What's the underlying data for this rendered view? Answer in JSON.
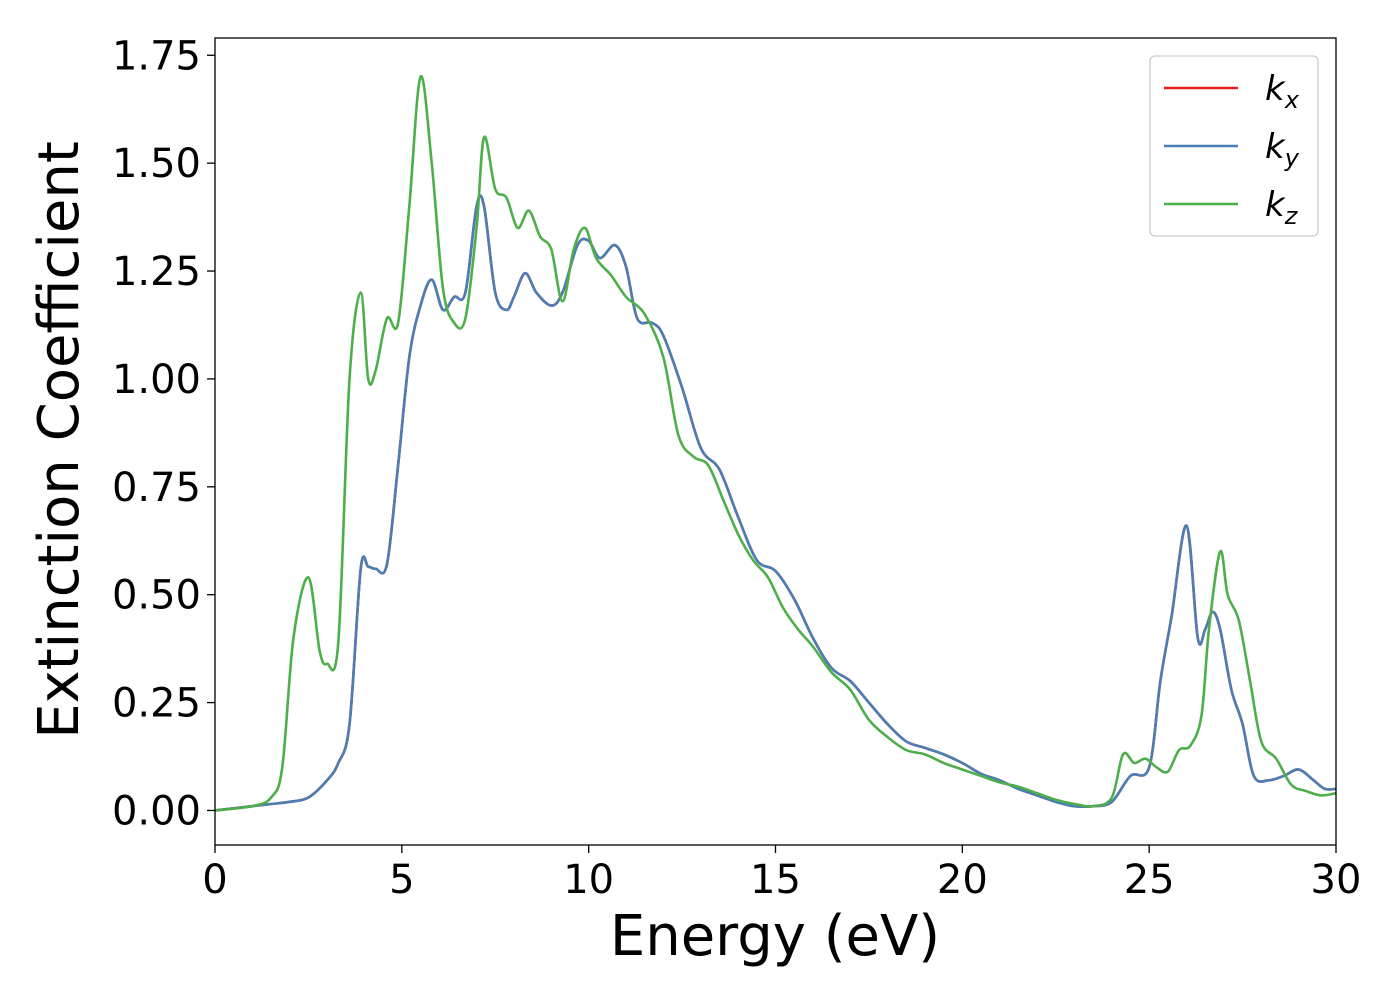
{
  "chart_data": {
    "type": "line",
    "title": "",
    "xlabel": "Energy (eV)",
    "ylabel": "Extinction Coefficient",
    "xlim": [
      0,
      30
    ],
    "ylim": [
      -0.08,
      1.79
    ],
    "xticks": [
      0,
      5,
      10,
      15,
      20,
      25,
      30
    ],
    "xtick_labels": [
      "0",
      "5",
      "10",
      "15",
      "20",
      "25",
      "30"
    ],
    "yticks": [
      0,
      0.25,
      0.5,
      0.75,
      1.0,
      1.25,
      1.5,
      1.75
    ],
    "ytick_labels": [
      "0.00",
      "0.25",
      "0.50",
      "0.75",
      "1.00",
      "1.25",
      "1.50",
      "1.75"
    ],
    "grid": false,
    "legend_position": "top-right",
    "series": [
      {
        "name": "x",
        "color": "#e41a1c",
        "x": [
          0,
          1,
          1.5,
          2,
          2.5,
          3,
          3.3,
          3.6,
          3.9,
          4.1,
          4.3,
          4.6,
          4.9,
          5.2,
          5.5,
          5.8,
          6.1,
          6.4,
          6.7,
          7,
          7.2,
          7.5,
          7.8,
          8.0,
          8.3,
          8.6,
          9,
          9.3,
          9.7,
          10.0,
          10.3,
          10.7,
          11.0,
          11.3,
          11.7,
          12.0,
          12.5,
          13.0,
          13.5,
          14.0,
          14.5,
          15.0,
          15.5,
          16.0,
          16.5,
          17.0,
          17.5,
          18.0,
          18.5,
          19.0,
          19.5,
          20.0,
          20.5,
          21.0,
          21.5,
          22.0,
          22.5,
          23.0,
          23.5,
          24.0,
          24.5,
          25.0,
          25.3,
          25.6,
          26.0,
          26.3,
          26.5,
          26.7,
          26.9,
          27.2,
          27.5,
          27.8,
          28.2,
          28.6,
          29.0,
          29.4,
          29.7,
          30
        ],
        "y": [
          0.0,
          0.01,
          0.015,
          0.02,
          0.03,
          0.07,
          0.11,
          0.2,
          0.56,
          0.565,
          0.56,
          0.57,
          0.8,
          1.05,
          1.17,
          1.23,
          1.16,
          1.19,
          1.2,
          1.4,
          1.4,
          1.2,
          1.16,
          1.19,
          1.245,
          1.2,
          1.17,
          1.2,
          1.31,
          1.32,
          1.28,
          1.31,
          1.26,
          1.14,
          1.13,
          1.1,
          0.98,
          0.84,
          0.79,
          0.68,
          0.58,
          0.555,
          0.49,
          0.4,
          0.33,
          0.3,
          0.25,
          0.2,
          0.16,
          0.145,
          0.13,
          0.11,
          0.085,
          0.07,
          0.05,
          0.035,
          0.02,
          0.01,
          0.01,
          0.02,
          0.08,
          0.1,
          0.3,
          0.45,
          0.66,
          0.4,
          0.42,
          0.46,
          0.42,
          0.28,
          0.2,
          0.08,
          0.07,
          0.08,
          0.095,
          0.07,
          0.05,
          0.05
        ]
      },
      {
        "name": "y",
        "color": "#4a7fb5",
        "x": [
          0,
          1,
          1.5,
          2,
          2.5,
          3,
          3.3,
          3.6,
          3.9,
          4.1,
          4.3,
          4.6,
          4.9,
          5.2,
          5.5,
          5.8,
          6.1,
          6.4,
          6.7,
          7,
          7.2,
          7.5,
          7.8,
          8.0,
          8.3,
          8.6,
          9,
          9.3,
          9.7,
          10.0,
          10.3,
          10.7,
          11.0,
          11.3,
          11.7,
          12.0,
          12.5,
          13.0,
          13.5,
          14.0,
          14.5,
          15.0,
          15.5,
          16.0,
          16.5,
          17.0,
          17.5,
          18.0,
          18.5,
          19.0,
          19.5,
          20.0,
          20.5,
          21.0,
          21.5,
          22.0,
          22.5,
          23.0,
          23.5,
          24.0,
          24.5,
          25.0,
          25.3,
          25.6,
          26.0,
          26.3,
          26.5,
          26.7,
          26.9,
          27.2,
          27.5,
          27.8,
          28.2,
          28.6,
          29.0,
          29.4,
          29.7,
          30
        ],
        "y": [
          0.0,
          0.01,
          0.015,
          0.02,
          0.03,
          0.07,
          0.11,
          0.2,
          0.56,
          0.565,
          0.56,
          0.57,
          0.8,
          1.05,
          1.17,
          1.23,
          1.16,
          1.19,
          1.2,
          1.4,
          1.4,
          1.2,
          1.16,
          1.19,
          1.245,
          1.2,
          1.17,
          1.2,
          1.31,
          1.32,
          1.28,
          1.31,
          1.26,
          1.14,
          1.13,
          1.1,
          0.98,
          0.84,
          0.79,
          0.68,
          0.58,
          0.555,
          0.49,
          0.4,
          0.33,
          0.3,
          0.25,
          0.2,
          0.16,
          0.145,
          0.13,
          0.11,
          0.085,
          0.07,
          0.05,
          0.035,
          0.02,
          0.01,
          0.01,
          0.02,
          0.08,
          0.1,
          0.3,
          0.45,
          0.66,
          0.4,
          0.42,
          0.46,
          0.42,
          0.28,
          0.2,
          0.08,
          0.07,
          0.08,
          0.095,
          0.07,
          0.05,
          0.05
        ]
      },
      {
        "name": "z",
        "color": "#4daf4a",
        "x": [
          0,
          1,
          1.5,
          1.8,
          2.1,
          2.5,
          2.8,
          3.0,
          3.3,
          3.6,
          3.9,
          4.1,
          4.3,
          4.6,
          4.9,
          5.2,
          5.5,
          5.8,
          6.1,
          6.4,
          6.7,
          7,
          7.2,
          7.5,
          7.8,
          8.1,
          8.4,
          8.7,
          9.0,
          9.3,
          9.6,
          9.9,
          10.2,
          10.6,
          11.0,
          11.5,
          12.0,
          12.4,
          12.8,
          13.2,
          13.6,
          14.0,
          14.4,
          14.8,
          15.2,
          15.6,
          16.0,
          16.5,
          17.0,
          17.5,
          18.0,
          18.5,
          19.0,
          19.5,
          20.0,
          20.5,
          21.0,
          21.5,
          22.0,
          22.5,
          23.0,
          23.5,
          24.0,
          24.3,
          24.6,
          24.9,
          25.2,
          25.5,
          25.8,
          26.1,
          26.4,
          26.6,
          26.9,
          27.1,
          27.4,
          27.7,
          28.0,
          28.4,
          28.8,
          29.2,
          29.6,
          30
        ],
        "y": [
          0.0,
          0.01,
          0.03,
          0.1,
          0.4,
          0.54,
          0.37,
          0.34,
          0.39,
          1.0,
          1.2,
          1.0,
          1.02,
          1.14,
          1.13,
          1.4,
          1.7,
          1.5,
          1.21,
          1.13,
          1.14,
          1.35,
          1.56,
          1.44,
          1.42,
          1.35,
          1.39,
          1.33,
          1.3,
          1.18,
          1.3,
          1.35,
          1.28,
          1.24,
          1.19,
          1.15,
          1.05,
          0.87,
          0.82,
          0.8,
          0.72,
          0.64,
          0.58,
          0.54,
          0.47,
          0.42,
          0.38,
          0.32,
          0.28,
          0.21,
          0.17,
          0.14,
          0.13,
          0.11,
          0.095,
          0.08,
          0.065,
          0.055,
          0.04,
          0.025,
          0.015,
          0.01,
          0.03,
          0.13,
          0.11,
          0.12,
          0.1,
          0.09,
          0.14,
          0.15,
          0.22,
          0.42,
          0.6,
          0.5,
          0.44,
          0.3,
          0.16,
          0.12,
          0.06,
          0.045,
          0.035,
          0.04
        ]
      }
    ]
  },
  "legend": {
    "entries": [
      {
        "base": "k",
        "sub": "x",
        "color": "#e41a1c"
      },
      {
        "base": "k",
        "sub": "y",
        "color": "#4a7fb5"
      },
      {
        "base": "k",
        "sub": "z",
        "color": "#4daf4a"
      }
    ]
  }
}
